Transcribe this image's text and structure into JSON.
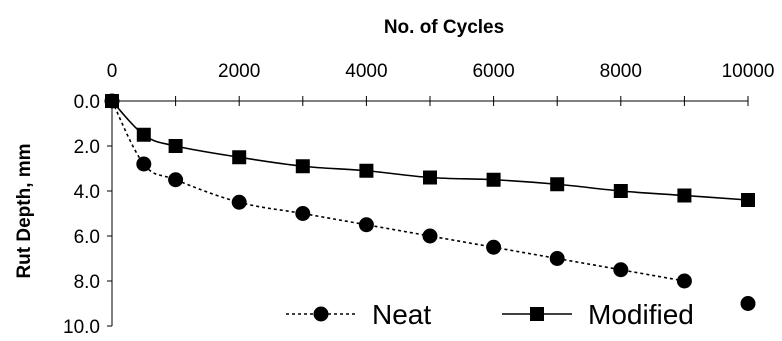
{
  "chart_data": {
    "type": "line",
    "title": "No. of Cycles",
    "xlabel": "No. of Cycles",
    "ylabel": "Rut Depth, mm",
    "x_axis_position": "top",
    "y_axis_reversed": true,
    "xlim": [
      0,
      10000
    ],
    "ylim": [
      0,
      10
    ],
    "x_ticks": [
      "0",
      "2000",
      "4000",
      "6000",
      "8000",
      "10000"
    ],
    "y_ticks": [
      "0.0",
      "2.0",
      "4.0",
      "6.0",
      "8.0",
      "10.0"
    ],
    "grid": false,
    "legend_placement": "bottom-right",
    "series": [
      {
        "name": "Neat",
        "marker": "circle",
        "line_style": "dotted",
        "color": "#000000",
        "x": [
          0,
          500,
          1000,
          2000,
          3000,
          4000,
          5000,
          6000,
          7000,
          8000,
          9000,
          10000
        ],
        "y": [
          0.0,
          2.8,
          3.5,
          4.5,
          5.0,
          5.5,
          6.0,
          6.5,
          7.0,
          7.5,
          8.0,
          9.0
        ]
      },
      {
        "name": "Modified",
        "marker": "square",
        "line_style": "solid",
        "color": "#000000",
        "x": [
          0,
          500,
          1000,
          2000,
          3000,
          4000,
          5000,
          6000,
          7000,
          8000,
          9000,
          10000
        ],
        "y": [
          0.0,
          1.5,
          2.0,
          2.5,
          2.9,
          3.1,
          3.4,
          3.5,
          3.7,
          4.0,
          4.2,
          4.4
        ]
      }
    ]
  }
}
